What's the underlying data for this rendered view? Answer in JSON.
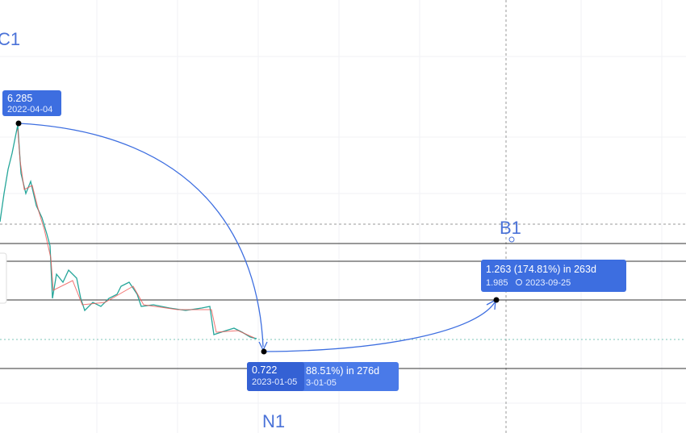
{
  "labels": {
    "c1": "C1",
    "b1": "B1",
    "n1": "N1"
  },
  "peak": {
    "price": "6.285",
    "date": "2022-04-04"
  },
  "bottom": {
    "price": "0.722",
    "date": "2023-01-05",
    "change": "88.51%) in 276d",
    "date_cut": "3-01-05"
  },
  "target": {
    "change": "1.263 (174.81%) in 263d",
    "price": "1.985",
    "date": "2023-09-25"
  }
}
